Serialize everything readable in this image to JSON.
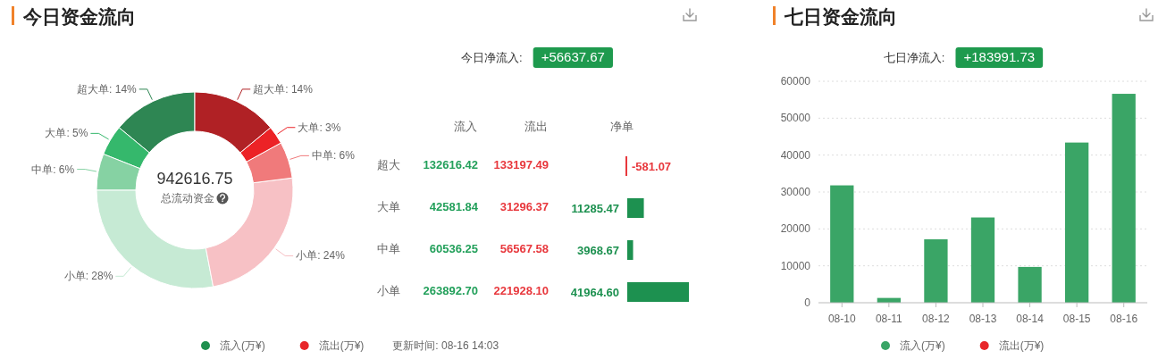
{
  "chart_data": [
    {
      "type": "donut",
      "title": "今日资金流向",
      "annotations": [
        "942616.75",
        "总流动资金",
        "流入(万¥)",
        "流出(万¥)",
        "更新时间: 08-16 14:03"
      ],
      "categories": [
        "超大单",
        "大单",
        "中单",
        "小单",
        "小单",
        "中单",
        "大单",
        "超大单"
      ],
      "values": [
        14,
        5,
        6,
        28,
        24,
        6,
        3,
        14
      ],
      "value_labels": [
        "14%",
        "5%",
        "6%",
        "28%",
        "24%",
        "6%",
        "3%",
        "14%"
      ],
      "colors": [
        "#2e8653",
        "#35b86c",
        "#86d2a3",
        "#c6ead4",
        "#f7c1c5",
        "#f07a7b",
        "#ec2226",
        "#b02125"
      ]
    },
    {
      "type": "other",
      "subtitle": "今日净流入:",
      "annotations": [
        "+56637.67"
      ],
      "categories": [
        "超大",
        "大单",
        "中单",
        "小单"
      ],
      "series": [
        {
          "name": "流入",
          "values": [
            132616.42,
            42581.84,
            60536.25,
            263892.7
          ],
          "value_labels": [
            "132616.42",
            "42581.84",
            "60536.25",
            "263892.70"
          ]
        },
        {
          "name": "流出",
          "values": [
            133197.49,
            31296.37,
            56567.58,
            221928.1
          ],
          "value_labels": [
            "133197.49",
            "31296.37",
            "56567.58",
            "221928.10"
          ]
        },
        {
          "name": "净单",
          "type": "bar",
          "colors": [
            "#e8383d",
            "#1d9150",
            "#1d9150",
            "#1d9150"
          ],
          "values": [
            -581.07,
            11285.47,
            3968.67,
            41964.6
          ],
          "value_labels": [
            "-581.07",
            "11285.47",
            "3968.67",
            "41964.60"
          ]
        }
      ]
    },
    {
      "type": "bar",
      "title": "七日资金流向",
      "subtitle": "七日净流入:",
      "annotations": [
        "+183991.73"
      ],
      "stacked": true,
      "legend": "bottom",
      "grid": "y",
      "categories": [
        "08-10",
        "08-11",
        "08-12",
        "08-13",
        "08-14",
        "08-15",
        "08-16"
      ],
      "series": [
        {
          "name": "流入(万¥)",
          "color": "#3aa566",
          "values": [
            31800,
            1300,
            17200,
            23100,
            9700,
            43400,
            56600
          ]
        },
        {
          "name": "流出(万¥)",
          "color": "#e8262a",
          "values": [
            null,
            null,
            null,
            null,
            null,
            null,
            null
          ]
        }
      ],
      "ylim": [
        0,
        60000
      ],
      "yticks": [
        0,
        10000,
        20000,
        30000,
        40000,
        50000,
        60000
      ]
    }
  ]
}
